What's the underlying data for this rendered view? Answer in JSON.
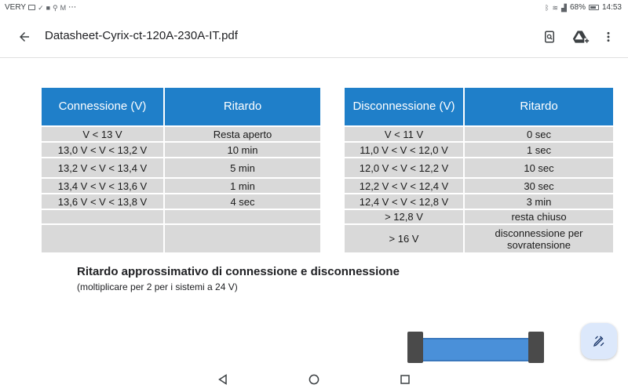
{
  "status_bar": {
    "carrier": "VERY",
    "battery": "68%",
    "time": "14:53",
    "overflow": "⋯",
    "icons": [
      "mail-icon",
      "check-icon",
      "facebook-icon",
      "maps-icon",
      "gmail-icon",
      "bluetooth-icon",
      "wifi-icon",
      "signal-icon",
      "battery-icon"
    ]
  },
  "app_bar": {
    "title": "Datasheet-Cyrix-ct-120A-230A-IT.pdf",
    "icons": [
      "back-arrow-icon",
      "search-in-document-icon",
      "drive-add-icon",
      "more-vert-icon"
    ]
  },
  "table_connection": {
    "headers": [
      "Connessione (V)",
      "Ritardo"
    ],
    "rows": [
      [
        "V < 13 V",
        "Resta aperto"
      ],
      [
        "13,0 V < V < 13,2 V",
        "10 min"
      ],
      [
        "13,2 V < V < 13,4 V",
        "5 min"
      ],
      [
        "13,4 V < V < 13,6 V",
        "1 min"
      ],
      [
        "13,6 V < V < 13,8 V",
        "4 sec"
      ],
      [
        "",
        ""
      ],
      [
        "",
        ""
      ]
    ]
  },
  "table_disconnection": {
    "headers": [
      "Disconnessione (V)",
      "Ritardo"
    ],
    "rows": [
      [
        "V < 11 V",
        "0 sec"
      ],
      [
        "11,0 V < V < 12,0 V",
        "1 sec"
      ],
      [
        "12,0 V < V < 12,2 V",
        "10 sec"
      ],
      [
        "12,2 V < V < 12,4 V",
        "30 sec"
      ],
      [
        "12,4 V < V < 12,8 V",
        "3 min"
      ],
      [
        "> 12,8 V",
        "resta chiuso"
      ],
      [
        "> 16 V",
        "disconnessione per sovratensione"
      ]
    ]
  },
  "caption": {
    "title": "Ritardo approssimativo di connessione e disconnessione",
    "subtitle": "(moltiplicare per 2 per i sistemi a 24 V)"
  },
  "fab": {
    "icon": "edit-annotate-icon"
  },
  "nav_bar": {
    "icons": [
      "nav-back-icon",
      "nav-home-icon",
      "nav-recents-icon"
    ]
  },
  "colors": {
    "table_header": "#1f7fc9",
    "table_cell": "#d9d9d9",
    "fab_bg": "#dce8fb",
    "device_body": "#4a90d9"
  }
}
